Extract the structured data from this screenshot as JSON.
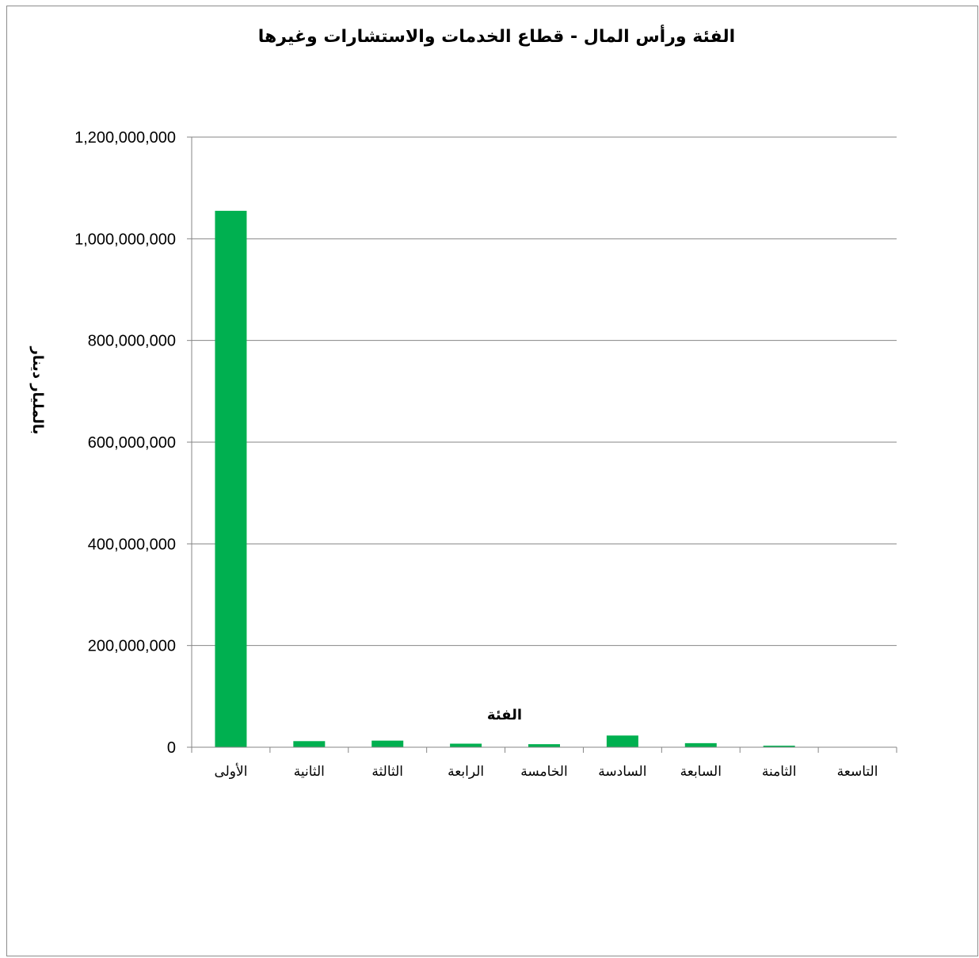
{
  "chart_data": {
    "type": "bar",
    "title": "الفئة ورأس المال - قطاع الخدمات والاستشارات وغيرها",
    "xlabel": "الفئة",
    "ylabel": "بالمليار دينار",
    "categories": [
      "الأولى",
      "الثانية",
      "الثالثة",
      "الرابعة",
      "الخامسة",
      "السادسة",
      "السابعة",
      "الثامنة",
      "التاسعة"
    ],
    "values": [
      1055000000,
      12000000,
      13000000,
      7000000,
      6000000,
      23000000,
      8000000,
      3000000,
      0
    ],
    "ylim": [
      0,
      1200000000
    ],
    "yticks": [
      0,
      200000000,
      400000000,
      600000000,
      800000000,
      1000000000,
      1200000000
    ],
    "ytick_labels": [
      "0",
      "200,000,000",
      "400,000,000",
      "600,000,000",
      "800,000,000",
      "1,000,000,000",
      "1,200,000,000"
    ],
    "grid": true,
    "legend": "none",
    "bar_color": "#00b050",
    "grid_color": "#868686"
  }
}
